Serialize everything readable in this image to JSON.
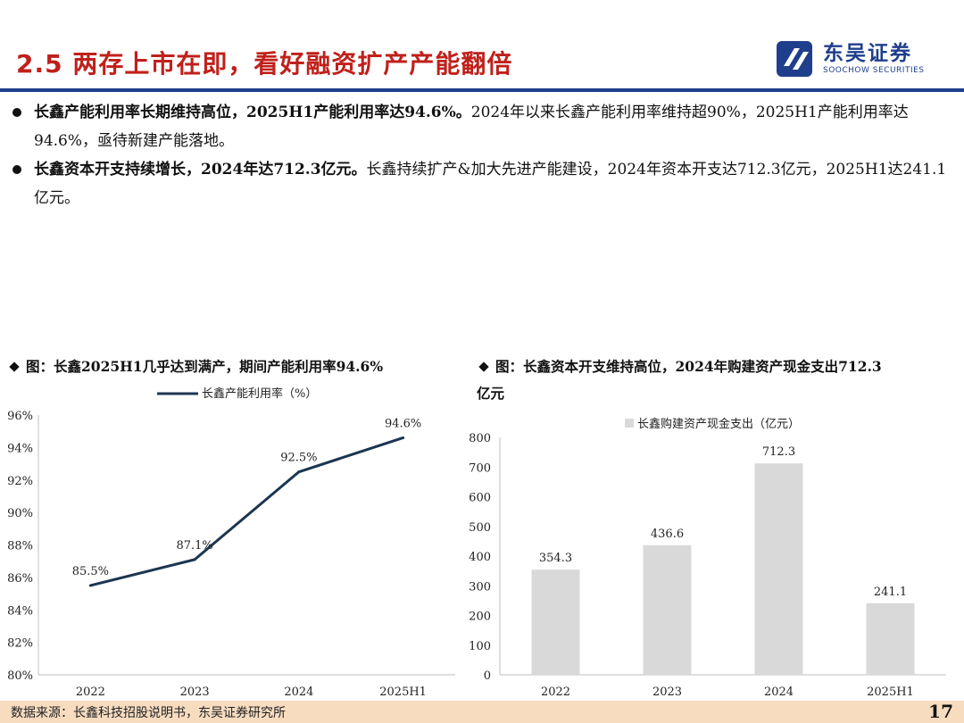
{
  "header": {
    "title": "2.5 两存上市在即，看好融资扩产产能翻倍",
    "logo": {
      "cn": "东吴证券",
      "en": "SOOCHOW SECURITIES",
      "brand_color": "#1f3f8c"
    },
    "accent_color": "#c0201b"
  },
  "bullets": [
    {
      "bold": "长鑫产能利用率长期维持高位，2025H1产能利用率达94.6%。",
      "text": "2024年以来长鑫产能利用率维持超90%，2025H1产能利用率达94.6%，亟待新建产能落地。"
    },
    {
      "bold": "长鑫资本开支持续增长，2024年达712.3亿元。",
      "text": "长鑫持续扩产&加大先进产能建设，2024年资本开支达712.3亿元，2025H1达241.1亿元。"
    }
  ],
  "chart_titles": {
    "left": "图：长鑫2025H1几乎达到满产，期间产能利用率94.6%",
    "right_line1": "图：长鑫资本开支维持高位，2024年购建资产现金支出712.3",
    "right_line2": "亿元"
  },
  "chart_data": [
    {
      "type": "line",
      "categories": [
        "2022",
        "2023",
        "2024",
        "2025H1"
      ],
      "series": [
        {
          "name": "长鑫产能利用率（%）",
          "values": [
            85.5,
            87.1,
            92.5,
            94.6
          ],
          "color": "#1c3550"
        }
      ],
      "data_labels": [
        "85.5%",
        "87.1%",
        "92.5%",
        "94.6%"
      ],
      "ylim": [
        80,
        96
      ],
      "yticks": [
        "80%",
        "82%",
        "84%",
        "86%",
        "88%",
        "90%",
        "92%",
        "94%",
        "96%"
      ],
      "legend": "top-center",
      "grid": false
    },
    {
      "type": "bar",
      "categories": [
        "2022",
        "2023",
        "2024",
        "2025H1"
      ],
      "series": [
        {
          "name": "长鑫购建资产现金支出（亿元）",
          "values": [
            354.3,
            436.6,
            712.3,
            241.1
          ],
          "color": "#d9d9d9"
        }
      ],
      "data_labels": [
        "354.3",
        "436.6",
        "712.3",
        "241.1"
      ],
      "ylim": [
        0,
        800
      ],
      "yticks": [
        "0",
        "100",
        "200",
        "300",
        "400",
        "500",
        "600",
        "700",
        "800"
      ],
      "legend": "top-center",
      "grid": false
    }
  ],
  "footer": {
    "source": "数据来源：长鑫科技招股说明书，东吴证券研究所",
    "page_number": "17",
    "background": "#f7dcc0"
  }
}
